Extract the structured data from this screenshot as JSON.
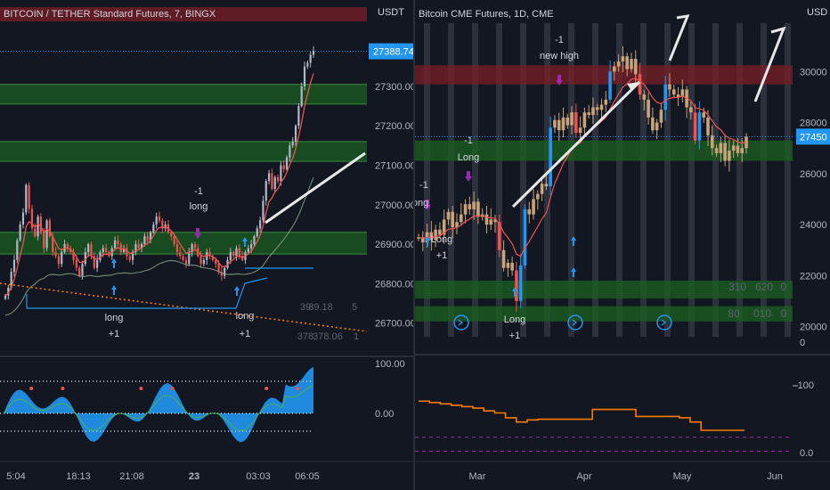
{
  "left": {
    "title": "BITCOIN / TETHER Standard Futures, 7, BINGX",
    "unit": "USDT",
    "price_ticks": [
      "27300.00",
      "27200.00",
      "27100.00",
      "27000.00",
      "26900.00",
      "26800.00",
      "26700.00"
    ],
    "price_tick_values": [
      27300,
      27200,
      27100,
      27000,
      26900,
      26800,
      26700
    ],
    "current_price": "27388.74",
    "current_price_value": 27388.74,
    "osc_ticks": [
      "100.00",
      "0.00"
    ],
    "time_ticks": [
      "5:04",
      "18:13",
      "21:08",
      "23",
      "03:03",
      "06:05"
    ],
    "annotations": [
      {
        "text": "-1",
        "group": "sell1"
      },
      {
        "text": "long",
        "group": "sell1"
      },
      {
        "text": "long",
        "group": "buy1"
      },
      {
        "text": "+1",
        "group": "buy1"
      },
      {
        "text": "long",
        "group": "buy2"
      },
      {
        "text": "+1",
        "group": "buy2"
      }
    ],
    "faded_values": [
      "39",
      "39.18",
      "5",
      "378",
      "378.06",
      "1"
    ],
    "colors": {
      "up": "#2196f3",
      "down": "#ef5350",
      "zone": "#1b5e20",
      "resistance": "#7a1f26"
    }
  },
  "right": {
    "title": "Bitcoin CME Futures, 1D, CME",
    "unit": "USD",
    "price_ticks": [
      "30000",
      "28000",
      "26000",
      "24000",
      "22000",
      "20000"
    ],
    "price_tick_values": [
      30000,
      28000,
      26000,
      24000,
      22000,
      20000
    ],
    "current_price": "27450",
    "current_price_value": 27450,
    "osc_ticks": [
      "0",
      "-100",
      "0.0"
    ],
    "time_ticks": [
      "Mar",
      "Apr",
      "May",
      "Jun"
    ],
    "annotations": [
      {
        "text": "-1",
        "group": "short1"
      },
      {
        "text": "ong",
        "group": "short1"
      },
      {
        "text": "-1",
        "group": "short2"
      },
      {
        "text": "Long",
        "group": "short2"
      },
      {
        "text": "Long",
        "group": "buy1"
      },
      {
        "text": "+1",
        "group": "buy1"
      },
      {
        "text": "-1",
        "group": "nh"
      },
      {
        "text": "new high",
        "group": "nh"
      },
      {
        "text": "Long",
        "group": "buy2"
      },
      {
        "text": "+1",
        "group": "buy2"
      }
    ],
    "faded_values": [
      "310",
      "620",
      "0",
      "80",
      "010",
      "0"
    ],
    "colors": {
      "line": "#f57c00",
      "ma": "#ef5350",
      "up": "#2196f3",
      "neutral": "#c8a37a"
    }
  },
  "chart_data": [
    {
      "type": "candlestick",
      "title": "BITCOIN / TETHER Standard Futures, 7, BINGX",
      "xlabel": "",
      "ylabel": "USDT",
      "ylim": [
        26670,
        27460
      ],
      "x_ticks": [
        "5:04",
        "18:13",
        "21:08",
        "23",
        "03:03",
        "06:05"
      ],
      "last_price": 27388.74,
      "zones": [
        [
          27255,
          27305
        ],
        [
          27110,
          27160
        ],
        [
          26875,
          26930
        ]
      ],
      "resistance": [
        27440,
        27470
      ],
      "closes": [
        26770,
        26790,
        26830,
        26860,
        26910,
        26950,
        26980,
        27050,
        26990,
        26940,
        26920,
        26970,
        26930,
        26890,
        26960,
        26920,
        26880,
        26870,
        26850,
        26880,
        26900,
        26890,
        26880,
        26860,
        26840,
        26820,
        26850,
        26880,
        26900,
        26870,
        26840,
        26860,
        26880,
        26890,
        26880,
        26870,
        26890,
        26910,
        26900,
        26880,
        26890,
        26870,
        26860,
        26880,
        26900,
        26890,
        26900,
        26920,
        26910,
        26930,
        26950,
        26970,
        26960,
        26940,
        26950,
        26930,
        26920,
        26900,
        26880,
        26870,
        26860,
        26850,
        26880,
        26900,
        26890,
        26870,
        26850,
        26860,
        26880,
        26870,
        26860,
        26850,
        26830,
        26820,
        26840,
        26860,
        26880,
        26870,
        26890,
        26870,
        26860,
        26880,
        26890,
        26900,
        26920,
        26940,
        26960,
        27010,
        27060,
        27080,
        27040,
        27070,
        27060,
        27100,
        27090,
        27120,
        27150,
        27160,
        27200,
        27250,
        27300,
        27350,
        27360,
        27380,
        27390
      ]
    },
    {
      "type": "candlestick",
      "title": "Bitcoin CME Futures, 1D, CME",
      "xlabel": "",
      "ylabel": "USD",
      "ylim": [
        19600,
        31900
      ],
      "x_ticks": [
        "Mar",
        "Apr",
        "May",
        "Jun"
      ],
      "last_price": 27450,
      "zones": [
        [
          26500,
          27300
        ],
        [
          21100,
          21800
        ],
        [
          20200,
          20800
        ]
      ],
      "resistance": [
        29500,
        30250
      ],
      "closes": [
        23500,
        23300,
        23700,
        23400,
        23800,
        23600,
        24200,
        24500,
        23900,
        24100,
        24400,
        24800,
        24600,
        24900,
        24300,
        24400,
        24000,
        24200,
        24100,
        23000,
        22300,
        22500,
        22200,
        21000,
        22400,
        24600,
        24400,
        25000,
        25200,
        25600,
        25500,
        27800,
        28100,
        27700,
        28200,
        27900,
        28400,
        27600,
        27800,
        28400,
        28300,
        28600,
        28500,
        28700,
        28900,
        30000,
        30200,
        30400,
        30600,
        30100,
        30500,
        29900,
        29100,
        28900,
        28200,
        27700,
        28000,
        28500,
        29500,
        29300,
        29100,
        29000,
        29300,
        28600,
        28400,
        27300,
        28400,
        28200,
        27500,
        27000,
        26800,
        27200,
        26500,
        26900,
        27100,
        26800,
        27000,
        27450
      ],
      "oscillator": {
        "levels": [
          -60,
          -80
        ],
        "values": [
          -8,
          -10,
          -12,
          -14,
          -16,
          -18,
          -22,
          -25,
          -32,
          -38,
          -35,
          -34,
          -34,
          -34,
          -34,
          -34,
          -20,
          -20,
          -20,
          -20,
          -30,
          -30,
          -30,
          -30,
          -32,
          -38,
          -50,
          -50,
          -50,
          -50,
          -50
        ]
      }
    }
  ]
}
